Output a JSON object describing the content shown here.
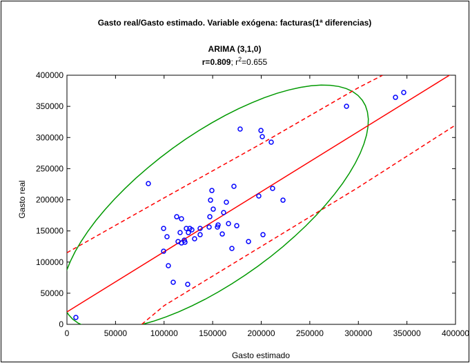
{
  "chart_data": {
    "type": "scatter",
    "title": "Gasto real/Gasto estimado. Variable exógena: facturas(1ª diferencias)",
    "subtitle": "ARIMA (3,1,0)",
    "stats": {
      "r_text": "r=0.809",
      "r2_prefix": "; r",
      "r2_sup": "2",
      "r2_value": "=0.655"
    },
    "x_label": "Gasto estimado",
    "y_label": "Gasto real",
    "xlim": [
      0,
      400000
    ],
    "ylim": [
      0,
      400000
    ],
    "xticks": [
      0,
      50000,
      100000,
      150000,
      200000,
      250000,
      300000,
      350000,
      400000
    ],
    "yticks": [
      0,
      50000,
      100000,
      150000,
      200000,
      250000,
      300000,
      350000,
      400000
    ],
    "point_color": "#0000ff",
    "x": [
      9200,
      83800,
      178300,
      199700,
      201100,
      210300,
      287800,
      338200,
      346700,
      99500,
      103000,
      99500,
      104400,
      109400,
      124300,
      113000,
      117900,
      116500,
      114400,
      117900,
      120800,
      121500,
      122900,
      126500,
      125000,
      128600,
      131400,
      137100,
      137100,
      146400,
      147100,
      147800,
      149200,
      150600,
      154900,
      155600,
      159900,
      161300,
      164100,
      166300,
      169800,
      171900,
      174800,
      186900,
      197500,
      201800,
      211700,
      222400
    ],
    "y": [
      11100,
      226000,
      313600,
      311300,
      301400,
      292500,
      350100,
      364500,
      372300,
      154000,
      140700,
      117400,
      94200,
      67600,
      64300,
      172800,
      169500,
      147400,
      133000,
      130700,
      135200,
      131900,
      154000,
      154000,
      147400,
      151800,
      137400,
      154000,
      144000,
      156200,
      172800,
      199400,
      214900,
      185000,
      156200,
      159600,
      145100,
      179500,
      196100,
      161800,
      121900,
      221600,
      158400,
      133000,
      206100,
      144000,
      218300,
      199400
    ],
    "regression": {
      "intercept": 20000,
      "slope": 0.965,
      "color": "#ff0000"
    },
    "upper_band": {
      "x": [
        0,
        100000,
        200000,
        300000,
        325000
      ],
      "y": [
        115000,
        203000,
        290000,
        380000,
        400000
      ]
    },
    "lower_band": {
      "x": [
        77000,
        100000,
        200000,
        300000,
        400000
      ],
      "y": [
        0,
        30000,
        125000,
        220000,
        320000
      ]
    },
    "ellipse": {
      "center": [
        152700,
        188000
      ],
      "major_end": [
        304000,
        360000
      ],
      "minor_end": [
        108700,
        282500
      ],
      "color": "#009900"
    }
  }
}
